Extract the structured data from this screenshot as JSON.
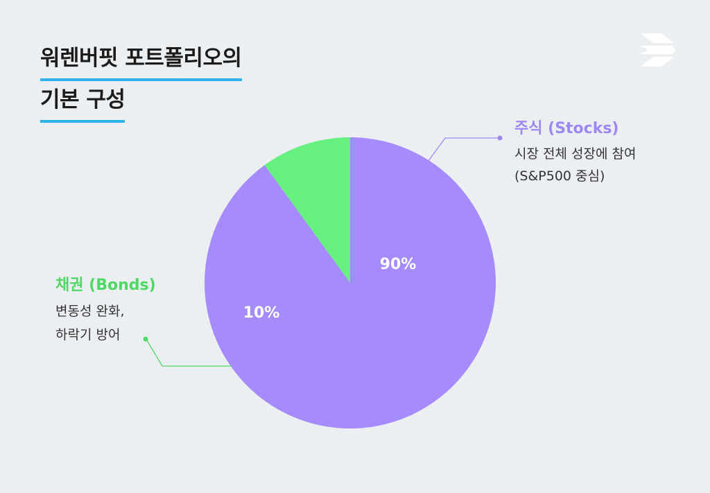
{
  "title": {
    "line1": "워렌버핏 포트폴리오의",
    "line2": "기본 구성"
  },
  "colors": {
    "stocks": "#a58bff",
    "bonds": "#66f07f",
    "accent_underline": "#2fb3f0",
    "background": "#eceff2"
  },
  "chart_data": {
    "type": "pie",
    "slices": [
      {
        "name": "주식 (Stocks)",
        "value": 90,
        "label": "90%",
        "desc": [
          "시장 전체 성장에 참여",
          "(S&P500 중심)"
        ],
        "color": "#a58bff",
        "label_color": "#9e86f5"
      },
      {
        "name": "채권 (Bonds)",
        "value": 10,
        "label": "10%",
        "desc": [
          "변동성 완화,",
          "하락기 방어"
        ],
        "color": "#66f07f",
        "label_color": "#4fd866"
      }
    ]
  }
}
